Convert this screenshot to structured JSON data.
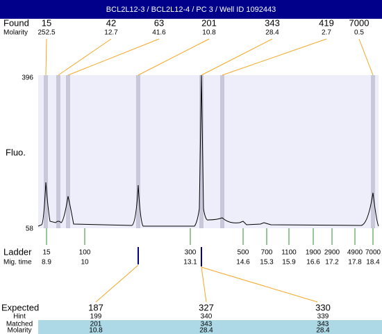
{
  "header": {
    "title": "BCL2L12-3 / BCL2L12-4 / PC 3 / Well ID 1092443"
  },
  "found": {
    "label": "Found",
    "values": [
      15,
      42,
      63,
      201,
      343,
      419,
      7000
    ]
  },
  "molarity": {
    "label": "Molarity",
    "values": [
      252.5,
      12.7,
      41.6,
      10.8,
      28.4,
      2.7,
      0.5
    ]
  },
  "y_axis": {
    "label": "Fluo.",
    "ticks": [
      396,
      58
    ]
  },
  "ladder": {
    "label": "Ladder",
    "sizes": [
      15,
      100,
      300,
      500,
      700,
      1100,
      1900,
      2900,
      4900,
      7000
    ]
  },
  "mig_time": {
    "label": "Mig. time",
    "values": [
      8.9,
      10,
      13.1,
      14.6,
      15.3,
      15.9,
      16.6,
      17.2,
      17.8,
      18.4
    ]
  },
  "expected_table": {
    "labels": [
      "Expected",
      "Hint",
      "Matched",
      "Molarity"
    ],
    "columns": [
      [
        187,
        199,
        201,
        10.8
      ],
      [
        327,
        340,
        343,
        28.4
      ],
      [
        330,
        339,
        343,
        28.4
      ]
    ]
  }
}
